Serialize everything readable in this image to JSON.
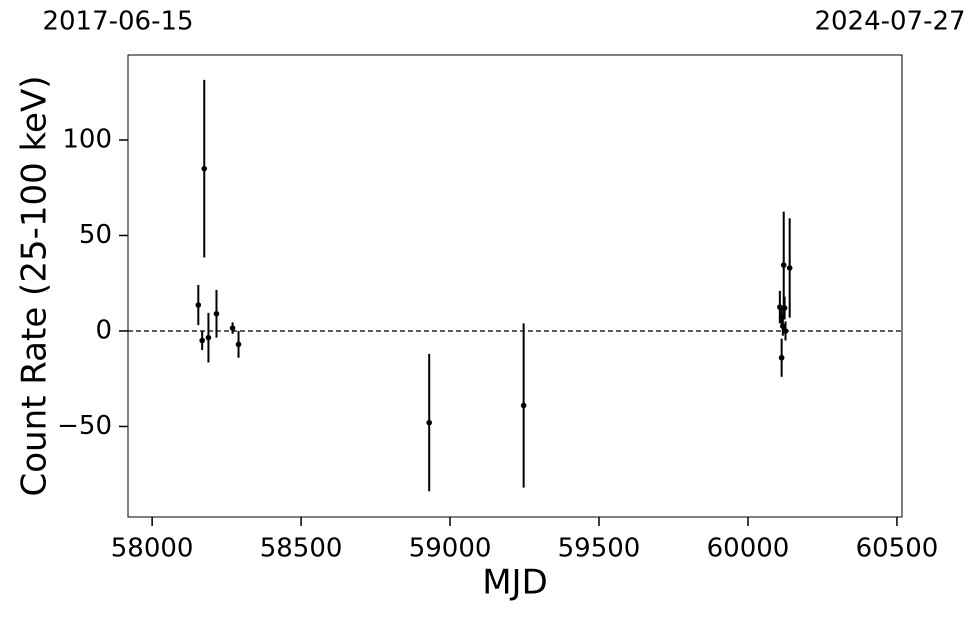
{
  "chart_data": {
    "type": "errorbar",
    "top_labels": [
      "2017-06-15",
      "2024-07-27"
    ],
    "xlabel": "MJD",
    "ylabel": "Count Rate (25-100 keV)",
    "x": [
      58155,
      58175,
      58168,
      58189,
      58216,
      58270,
      58290,
      58930,
      59247,
      60107,
      60113,
      60113,
      60117,
      60120,
      60123,
      60126,
      60140
    ],
    "values": [
      13.6,
      85,
      -5,
      -3.5,
      9,
      1.5,
      -7,
      -48,
      -39,
      12.5,
      -14,
      7,
      2.5,
      34.5,
      12,
      0,
      33
    ],
    "errors": [
      10.5,
      46.5,
      5,
      13,
      12.5,
      3,
      7,
      36,
      43,
      8.5,
      10,
      5,
      5,
      28,
      6,
      5,
      26
    ],
    "color": "#000000",
    "hline": 0,
    "xlim": [
      57919,
      60517
    ],
    "ylim": [
      -97.4,
      144.5
    ],
    "xticks": [
      58000,
      58500,
      59000,
      59500,
      60000,
      60500
    ],
    "yticks": [
      {
        "value": -50,
        "label": "−50"
      },
      0,
      50,
      100
    ]
  }
}
